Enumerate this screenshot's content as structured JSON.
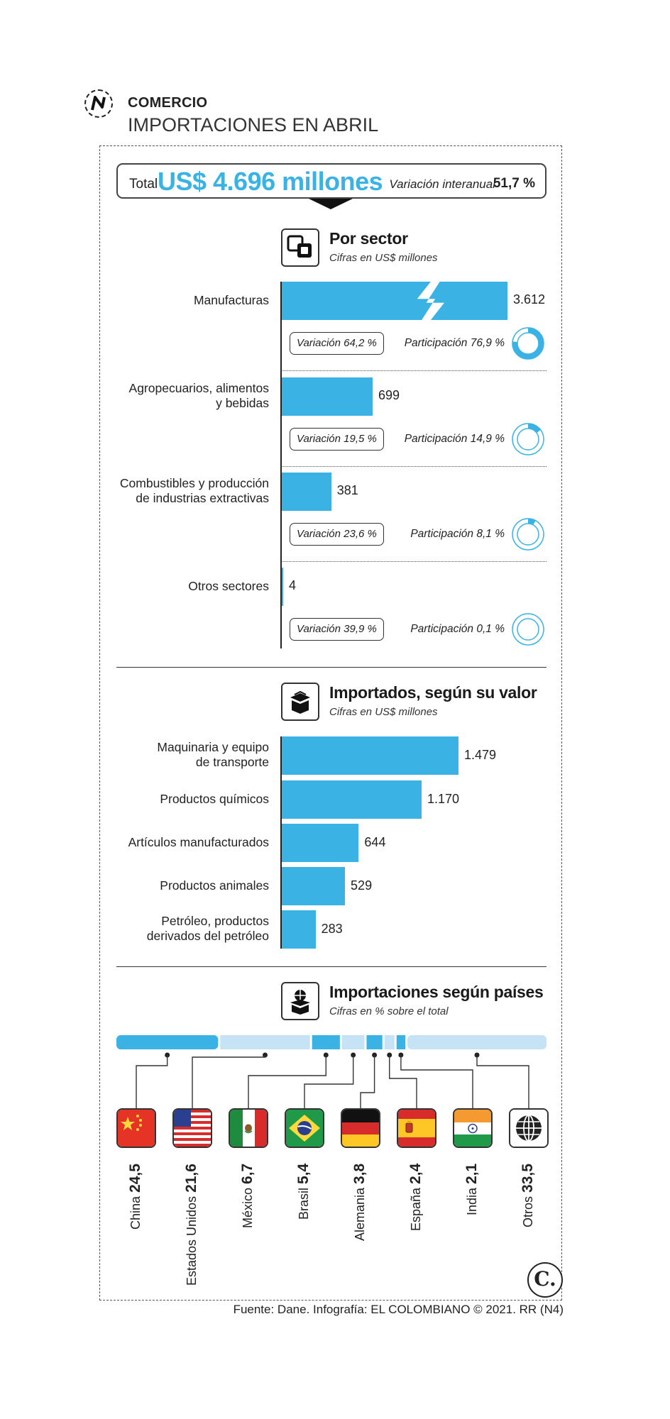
{
  "header": {
    "kicker": "COMERCIO",
    "headline": "IMPORTACIONES EN ABRIL",
    "total_label": "Total",
    "total_value": "US$ 4.696 millones",
    "variation_label": "Variación interanual",
    "variation_value": "51,7 %"
  },
  "colors": {
    "accent": "#3ab3e4",
    "light": "#c6e2f5",
    "ink": "#222222"
  },
  "icons": {
    "brand": "n-logo-icon",
    "sector": "squares-icon",
    "value": "box-icon",
    "countries": "globe-box-icon",
    "footer": "c-logo-icon"
  },
  "chart_data": [
    {
      "type": "bar",
      "orientation": "horizontal",
      "title": "Por sector",
      "subtitle": "Cifras en US$ millones",
      "categories": [
        "Manufacturas",
        "Agropecuarios, alimentos y bebidas",
        "Combustibles y producción de industrias extractivas",
        "Otros sectores"
      ],
      "category_lines": [
        [
          "Manufacturas"
        ],
        [
          "Agropecuarios, alimentos",
          "y bebidas"
        ],
        [
          "Combustibles y producción",
          "de industrias extractivas"
        ],
        [
          "Otros sectores"
        ]
      ],
      "values": [
        3612,
        699,
        381,
        4
      ],
      "value_labels": [
        "3.612",
        "699",
        "381",
        "4"
      ],
      "axis_break": true,
      "variation_labels": [
        "Variación 64,2 %",
        "Variación 19,5 %",
        "Variación 23,6 %",
        "Variación 39,9 %"
      ],
      "participation_labels": [
        "Participación 76,9 %",
        "Participación 14,9 %",
        "Participación 8,1 %",
        "Participación 0,1 %"
      ],
      "participation": [
        76.9,
        14.9,
        8.1,
        0.1
      ]
    },
    {
      "type": "bar",
      "orientation": "horizontal",
      "title": "Importados, según su valor",
      "subtitle": "Cifras en US$ millones",
      "categories": [
        "Maquinaria y equipo de transporte",
        "Productos químicos",
        "Artículos manufacturados",
        "Productos animales",
        "Petróleo, productos derivados del petróleo"
      ],
      "category_lines": [
        [
          "Maquinaria y equipo",
          "de transporte"
        ],
        [
          "Productos químicos"
        ],
        [
          "Artículos manufacturados"
        ],
        [
          "Productos animales"
        ],
        [
          "Petróleo, productos",
          "derivados del petróleo"
        ]
      ],
      "values": [
        1479,
        1170,
        644,
        529,
        283
      ],
      "value_labels": [
        "1.479",
        "1.170",
        "644",
        "529",
        "283"
      ]
    },
    {
      "type": "bar",
      "orientation": "stacked-horizontal",
      "title": "Importaciones según países",
      "subtitle": "Cifras en % sobre el total",
      "categories": [
        "China",
        "Estados Unidos",
        "México",
        "Brasil",
        "Alemania",
        "España",
        "India",
        "Otros"
      ],
      "values": [
        24.5,
        21.6,
        6.7,
        5.4,
        3.8,
        2.4,
        2.1,
        33.5
      ],
      "value_labels": [
        "24,5",
        "21,6",
        "6,7",
        "5,4",
        "3,8",
        "2,4",
        "2,1",
        "33,5"
      ],
      "segment_colors": [
        "#3ab3e4",
        "#c6e2f5",
        "#3ab3e4",
        "#c6e2f5",
        "#3ab3e4",
        "#c6e2f5",
        "#3ab3e4",
        "#c6e2f5"
      ],
      "flags": [
        "china-flag-icon",
        "usa-flag-icon",
        "mexico-flag-icon",
        "brazil-flag-icon",
        "germany-flag-icon",
        "spain-flag-icon",
        "india-flag-icon",
        "globe-icon"
      ]
    }
  ],
  "footer": {
    "logo_letter": "C.",
    "source": "Fuente: Dane. Infografía: EL COLOMBIANO © 2021. RR (N4)"
  }
}
